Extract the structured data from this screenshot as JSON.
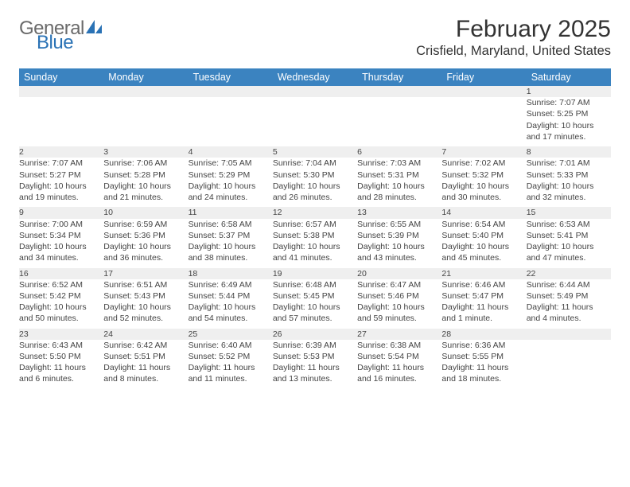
{
  "brand": {
    "name_part1": "General",
    "name_part2": "Blue",
    "text_color_gray": "#6a6a6a",
    "text_color_blue": "#2a72b5"
  },
  "title": "February 2025",
  "location": "Crisfield, Maryland, United States",
  "colors": {
    "header_bg": "#3b83c0",
    "header_text": "#ffffff",
    "daynum_bg": "#efefef",
    "border": "#bfbfbf",
    "body_text": "#444444"
  },
  "weekdays": [
    "Sunday",
    "Monday",
    "Tuesday",
    "Wednesday",
    "Thursday",
    "Friday",
    "Saturday"
  ],
  "weeks": [
    {
      "nums": [
        "",
        "",
        "",
        "",
        "",
        "",
        "1"
      ],
      "cells": [
        null,
        null,
        null,
        null,
        null,
        null,
        {
          "sunrise": "Sunrise: 7:07 AM",
          "sunset": "Sunset: 5:25 PM",
          "daylight1": "Daylight: 10 hours",
          "daylight2": "and 17 minutes."
        }
      ]
    },
    {
      "nums": [
        "2",
        "3",
        "4",
        "5",
        "6",
        "7",
        "8"
      ],
      "cells": [
        {
          "sunrise": "Sunrise: 7:07 AM",
          "sunset": "Sunset: 5:27 PM",
          "daylight1": "Daylight: 10 hours",
          "daylight2": "and 19 minutes."
        },
        {
          "sunrise": "Sunrise: 7:06 AM",
          "sunset": "Sunset: 5:28 PM",
          "daylight1": "Daylight: 10 hours",
          "daylight2": "and 21 minutes."
        },
        {
          "sunrise": "Sunrise: 7:05 AM",
          "sunset": "Sunset: 5:29 PM",
          "daylight1": "Daylight: 10 hours",
          "daylight2": "and 24 minutes."
        },
        {
          "sunrise": "Sunrise: 7:04 AM",
          "sunset": "Sunset: 5:30 PM",
          "daylight1": "Daylight: 10 hours",
          "daylight2": "and 26 minutes."
        },
        {
          "sunrise": "Sunrise: 7:03 AM",
          "sunset": "Sunset: 5:31 PM",
          "daylight1": "Daylight: 10 hours",
          "daylight2": "and 28 minutes."
        },
        {
          "sunrise": "Sunrise: 7:02 AM",
          "sunset": "Sunset: 5:32 PM",
          "daylight1": "Daylight: 10 hours",
          "daylight2": "and 30 minutes."
        },
        {
          "sunrise": "Sunrise: 7:01 AM",
          "sunset": "Sunset: 5:33 PM",
          "daylight1": "Daylight: 10 hours",
          "daylight2": "and 32 minutes."
        }
      ]
    },
    {
      "nums": [
        "9",
        "10",
        "11",
        "12",
        "13",
        "14",
        "15"
      ],
      "cells": [
        {
          "sunrise": "Sunrise: 7:00 AM",
          "sunset": "Sunset: 5:34 PM",
          "daylight1": "Daylight: 10 hours",
          "daylight2": "and 34 minutes."
        },
        {
          "sunrise": "Sunrise: 6:59 AM",
          "sunset": "Sunset: 5:36 PM",
          "daylight1": "Daylight: 10 hours",
          "daylight2": "and 36 minutes."
        },
        {
          "sunrise": "Sunrise: 6:58 AM",
          "sunset": "Sunset: 5:37 PM",
          "daylight1": "Daylight: 10 hours",
          "daylight2": "and 38 minutes."
        },
        {
          "sunrise": "Sunrise: 6:57 AM",
          "sunset": "Sunset: 5:38 PM",
          "daylight1": "Daylight: 10 hours",
          "daylight2": "and 41 minutes."
        },
        {
          "sunrise": "Sunrise: 6:55 AM",
          "sunset": "Sunset: 5:39 PM",
          "daylight1": "Daylight: 10 hours",
          "daylight2": "and 43 minutes."
        },
        {
          "sunrise": "Sunrise: 6:54 AM",
          "sunset": "Sunset: 5:40 PM",
          "daylight1": "Daylight: 10 hours",
          "daylight2": "and 45 minutes."
        },
        {
          "sunrise": "Sunrise: 6:53 AM",
          "sunset": "Sunset: 5:41 PM",
          "daylight1": "Daylight: 10 hours",
          "daylight2": "and 47 minutes."
        }
      ]
    },
    {
      "nums": [
        "16",
        "17",
        "18",
        "19",
        "20",
        "21",
        "22"
      ],
      "cells": [
        {
          "sunrise": "Sunrise: 6:52 AM",
          "sunset": "Sunset: 5:42 PM",
          "daylight1": "Daylight: 10 hours",
          "daylight2": "and 50 minutes."
        },
        {
          "sunrise": "Sunrise: 6:51 AM",
          "sunset": "Sunset: 5:43 PM",
          "daylight1": "Daylight: 10 hours",
          "daylight2": "and 52 minutes."
        },
        {
          "sunrise": "Sunrise: 6:49 AM",
          "sunset": "Sunset: 5:44 PM",
          "daylight1": "Daylight: 10 hours",
          "daylight2": "and 54 minutes."
        },
        {
          "sunrise": "Sunrise: 6:48 AM",
          "sunset": "Sunset: 5:45 PM",
          "daylight1": "Daylight: 10 hours",
          "daylight2": "and 57 minutes."
        },
        {
          "sunrise": "Sunrise: 6:47 AM",
          "sunset": "Sunset: 5:46 PM",
          "daylight1": "Daylight: 10 hours",
          "daylight2": "and 59 minutes."
        },
        {
          "sunrise": "Sunrise: 6:46 AM",
          "sunset": "Sunset: 5:47 PM",
          "daylight1": "Daylight: 11 hours",
          "daylight2": "and 1 minute."
        },
        {
          "sunrise": "Sunrise: 6:44 AM",
          "sunset": "Sunset: 5:49 PM",
          "daylight1": "Daylight: 11 hours",
          "daylight2": "and 4 minutes."
        }
      ]
    },
    {
      "nums": [
        "23",
        "24",
        "25",
        "26",
        "27",
        "28",
        ""
      ],
      "cells": [
        {
          "sunrise": "Sunrise: 6:43 AM",
          "sunset": "Sunset: 5:50 PM",
          "daylight1": "Daylight: 11 hours",
          "daylight2": "and 6 minutes."
        },
        {
          "sunrise": "Sunrise: 6:42 AM",
          "sunset": "Sunset: 5:51 PM",
          "daylight1": "Daylight: 11 hours",
          "daylight2": "and 8 minutes."
        },
        {
          "sunrise": "Sunrise: 6:40 AM",
          "sunset": "Sunset: 5:52 PM",
          "daylight1": "Daylight: 11 hours",
          "daylight2": "and 11 minutes."
        },
        {
          "sunrise": "Sunrise: 6:39 AM",
          "sunset": "Sunset: 5:53 PM",
          "daylight1": "Daylight: 11 hours",
          "daylight2": "and 13 minutes."
        },
        {
          "sunrise": "Sunrise: 6:38 AM",
          "sunset": "Sunset: 5:54 PM",
          "daylight1": "Daylight: 11 hours",
          "daylight2": "and 16 minutes."
        },
        {
          "sunrise": "Sunrise: 6:36 AM",
          "sunset": "Sunset: 5:55 PM",
          "daylight1": "Daylight: 11 hours",
          "daylight2": "and 18 minutes."
        },
        null
      ]
    }
  ]
}
